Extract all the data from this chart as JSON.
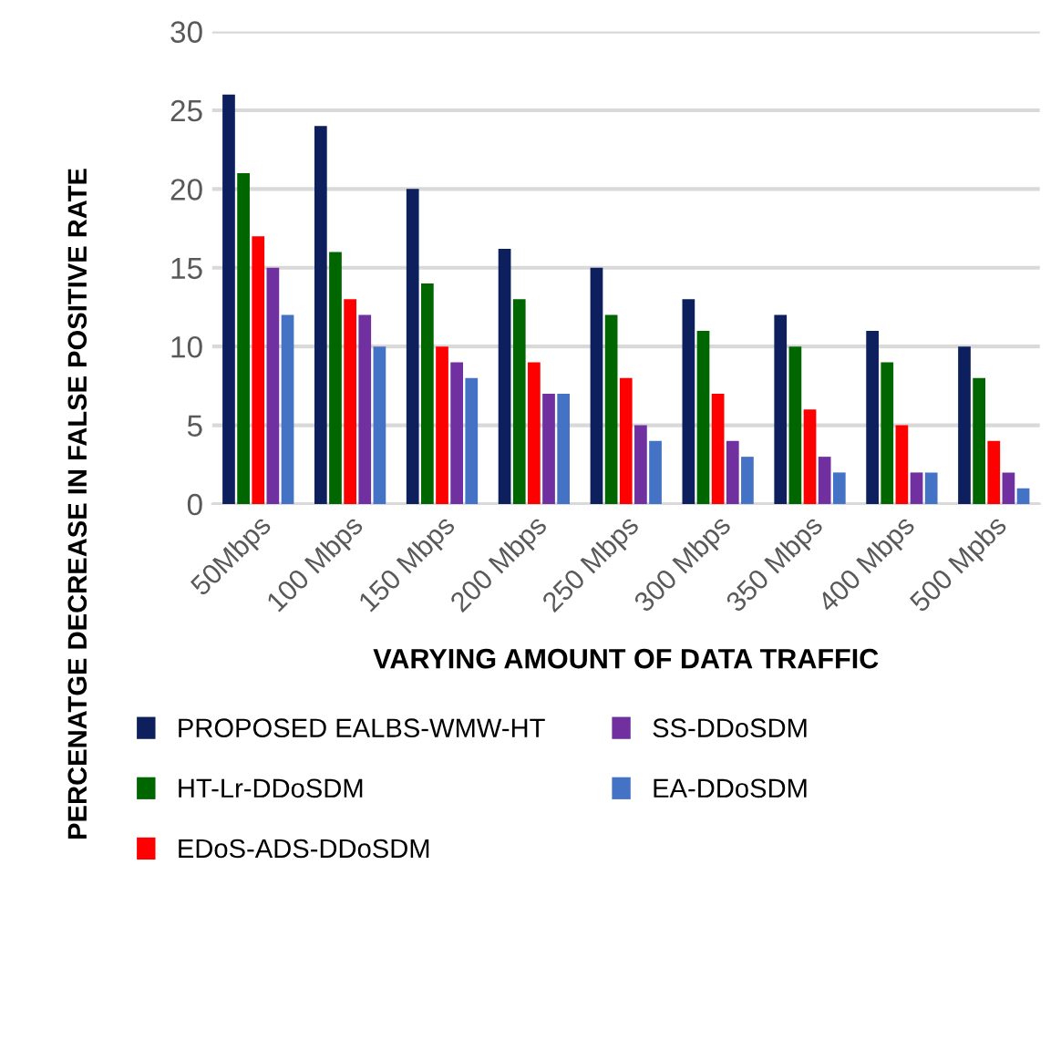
{
  "chart_data": {
    "type": "bar",
    "xlabel": "VARYING AMOUNT OF DATA TRAFFIC",
    "ylabel": "PERCENATGE DECREASE IN FALSE POSITIVE RATE",
    "categories": [
      "50Mbps",
      "100 Mbps",
      "150 Mbps",
      "200 Mbps",
      "250 Mbps",
      "300 Mbps",
      "350 Mbps",
      "400 Mbps",
      "500 Mpbs"
    ],
    "series": [
      {
        "name": "PROPOSED EALBS-WMW-HT",
        "color": "#0d1f5c",
        "values": [
          26,
          24,
          20,
          16.2,
          15,
          13,
          12,
          11,
          10
        ]
      },
      {
        "name": "HT-Lr-DDoSDM",
        "color": "#006600",
        "values": [
          21,
          16,
          14,
          13,
          12,
          11,
          10,
          9,
          8
        ]
      },
      {
        "name": "EDoS-ADS-DDoSDM",
        "color": "#ff0000",
        "values": [
          17,
          13,
          10,
          9,
          8,
          7,
          6,
          5,
          4
        ]
      },
      {
        "name": "SS-DDoSDM",
        "color": "#7030a0",
        "values": [
          15,
          12,
          9,
          7,
          5,
          4,
          3,
          2,
          2
        ]
      },
      {
        "name": "EA-DDoSDM",
        "color": "#4472c4",
        "values": [
          12,
          10,
          8,
          7,
          4,
          3,
          2,
          2,
          1
        ]
      }
    ],
    "ylim": [
      0,
      30
    ],
    "yticks": [
      0,
      5,
      10,
      15,
      20,
      25,
      30
    ],
    "grid": "y",
    "legend": "bottom"
  }
}
